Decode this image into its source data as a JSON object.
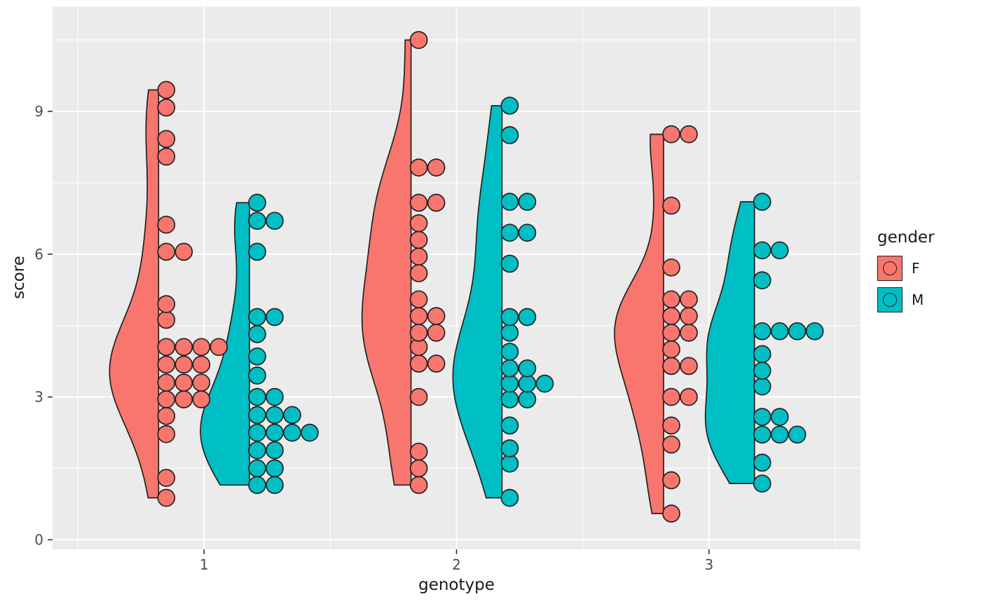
{
  "axes": {
    "x": {
      "label": "genotype",
      "ticks": [
        "1",
        "2",
        "3"
      ],
      "tick_values": [
        1,
        2,
        3
      ],
      "minor": [
        0.5,
        1.5,
        2.5,
        3.5
      ],
      "domain": [
        0.4,
        3.6
      ]
    },
    "y": {
      "label": "score",
      "ticks": [
        "0",
        "3",
        "6",
        "9"
      ],
      "tick_values": [
        0,
        3,
        6,
        9
      ],
      "minor": [
        1.5,
        4.5,
        7.5,
        10.5
      ],
      "domain": [
        -0.2,
        11.2
      ]
    }
  },
  "legend": {
    "title": "gender",
    "entries": [
      {
        "label": "F",
        "color": "#F8766D"
      },
      {
        "label": "M",
        "color": "#00BFC4"
      }
    ]
  },
  "style": {
    "panel_bg": "#EBEBEB",
    "grid": "#FFFFFF",
    "outline": "#222222",
    "tick_color": "#333333",
    "tick_label_color": "#4D4D4D",
    "text_color": "#1A1A1A"
  },
  "chart_data": {
    "type": "scatter",
    "subtype": "raincloud: left half-violin density + right-stacked dotplot, dodged by gender",
    "title": "",
    "xlabel": "genotype",
    "ylabel": "score",
    "x_categories": [
      1,
      2,
      3
    ],
    "group_variable": "gender",
    "ylim": [
      -0.2,
      11.2
    ],
    "grid": true,
    "legend_position": "right",
    "dot_binwidth": 0.25,
    "groups": [
      {
        "genotype": 1,
        "gender": "F",
        "color": "#F8766D",
        "values": [
          0.88,
          1.3,
          2.22,
          2.6,
          2.95,
          2.95,
          2.95,
          3.3,
          3.3,
          3.3,
          3.68,
          3.68,
          3.68,
          4.05,
          4.05,
          4.05,
          4.05,
          4.62,
          4.95,
          6.05,
          6.05,
          6.62,
          8.05,
          8.42,
          9.08,
          9.45
        ]
      },
      {
        "genotype": 1,
        "gender": "M",
        "color": "#00BFC4",
        "values": [
          1.15,
          1.15,
          1.5,
          1.5,
          1.88,
          1.88,
          2.25,
          2.25,
          2.25,
          2.25,
          2.62,
          2.62,
          2.62,
          3.0,
          3.0,
          3.45,
          3.85,
          4.32,
          4.68,
          4.68,
          6.05,
          6.7,
          6.7,
          7.08
        ]
      },
      {
        "genotype": 2,
        "gender": "F",
        "color": "#F8766D",
        "values": [
          1.15,
          1.5,
          1.85,
          3.0,
          3.7,
          3.7,
          4.05,
          4.35,
          4.35,
          4.7,
          4.7,
          5.05,
          5.6,
          5.95,
          6.3,
          6.65,
          7.08,
          7.08,
          7.82,
          7.82,
          10.5
        ]
      },
      {
        "genotype": 2,
        "gender": "M",
        "color": "#00BFC4",
        "values": [
          0.88,
          1.6,
          1.92,
          2.4,
          2.95,
          2.95,
          3.28,
          3.28,
          3.28,
          3.6,
          3.6,
          3.95,
          4.35,
          4.68,
          4.68,
          5.8,
          6.45,
          6.45,
          7.1,
          7.1,
          8.5,
          9.12
        ]
      },
      {
        "genotype": 3,
        "gender": "F",
        "color": "#F8766D",
        "values": [
          0.55,
          1.25,
          2.0,
          2.4,
          3.0,
          3.0,
          3.65,
          3.65,
          4.0,
          4.35,
          4.35,
          4.7,
          4.7,
          5.05,
          5.05,
          5.72,
          7.02,
          8.52,
          8.52
        ]
      },
      {
        "genotype": 3,
        "gender": "M",
        "color": "#00BFC4",
        "values": [
          1.18,
          1.62,
          2.21,
          2.21,
          2.21,
          2.58,
          2.58,
          3.22,
          3.55,
          3.9,
          4.38,
          4.38,
          4.38,
          4.38,
          5.45,
          6.08,
          6.08,
          7.1
        ]
      }
    ]
  }
}
